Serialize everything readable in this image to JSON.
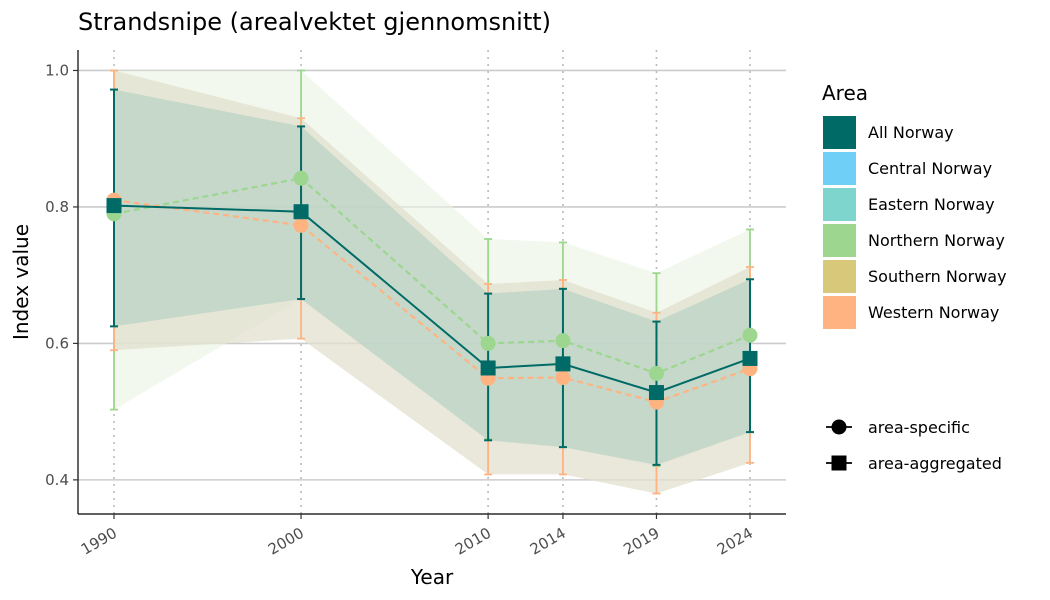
{
  "chart_data": {
    "type": "line",
    "title": "Strandsnipe (arealvektet gjennomsnitt)",
    "xlabel": "Year",
    "ylabel": "Index value",
    "x": [
      1990,
      2000,
      2010,
      2014,
      2019,
      2024
    ],
    "x_ticks": [
      "1990",
      "2000",
      "2010",
      "2014",
      "2019",
      "2024"
    ],
    "xlim": [
      1990,
      2024
    ],
    "ylim": [
      0.35,
      1.03
    ],
    "y_ticks": [
      {
        "value": 0.4,
        "label": "0.4"
      },
      {
        "value": 0.6,
        "label": "0.6"
      },
      {
        "value": 0.8,
        "label": "0.8"
      },
      {
        "value": 1.0,
        "label": "1.0"
      }
    ],
    "grid": "horizontal major gridlines; dotted vertical lines at each year",
    "legend": {
      "title": "Area",
      "position": "right",
      "areas": [
        {
          "name": "All Norway",
          "color": "#006A66"
        },
        {
          "name": "Central Norway",
          "color": "#6FCFF7"
        },
        {
          "name": "Eastern Norway",
          "color": "#7ED5CE"
        },
        {
          "name": "Northern Norway",
          "color": "#9CD68F"
        },
        {
          "name": "Southern Norway",
          "color": "#D8C87A"
        },
        {
          "name": "Western Norway",
          "color": "#FFB381"
        }
      ],
      "shapes": [
        {
          "name": "area-specific",
          "shape": "circle"
        },
        {
          "name": "area-aggregated",
          "shape": "square"
        }
      ]
    },
    "series": [
      {
        "name": "Northern Norway",
        "type": "area-specific",
        "color": "#9CD68F",
        "line": "dashed",
        "values": [
          0.79,
          0.842,
          0.6,
          0.604,
          0.556,
          0.612
        ],
        "lower": [
          0.503,
          0.665,
          0.46,
          0.448,
          0.42,
          0.47
        ],
        "upper": [
          1.0,
          1.0,
          0.753,
          0.748,
          0.703,
          0.767
        ],
        "band_color": "#E9F3E1",
        "band_opacity": 0.6
      },
      {
        "name": "Western Norway",
        "type": "area-specific",
        "color": "#FFB381",
        "line": "dashed",
        "values": [
          0.81,
          0.773,
          0.549,
          0.55,
          0.514,
          0.563
        ],
        "lower": [
          0.59,
          0.607,
          0.408,
          0.408,
          0.38,
          0.425
        ],
        "upper": [
          1.0,
          0.93,
          0.687,
          0.693,
          0.645,
          0.712
        ],
        "band_color": "#E2E0CF",
        "band_opacity": 0.75
      },
      {
        "name": "All Norway",
        "type": "area-aggregated",
        "color": "#006A66",
        "line": "solid",
        "values": [
          0.802,
          0.793,
          0.564,
          0.57,
          0.528,
          0.578
        ],
        "lower": [
          0.625,
          0.665,
          0.458,
          0.448,
          0.422,
          0.47
        ],
        "upper": [
          0.972,
          0.918,
          0.673,
          0.68,
          0.632,
          0.694
        ],
        "band_color": "#A9CCC0",
        "band_opacity": 0.55
      }
    ]
  }
}
